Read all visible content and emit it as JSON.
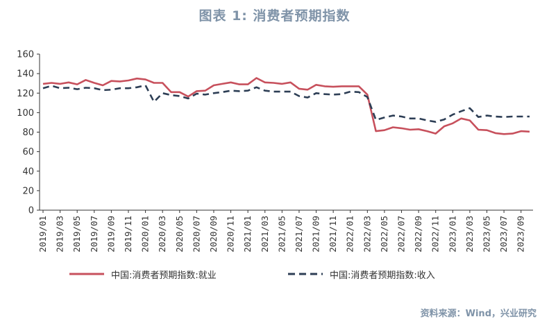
{
  "title": "图表 1:  消费者预期指数",
  "source": "资料来源：Wind，兴业研究",
  "colors": {
    "employment": "#c7505c",
    "income": "#2d3e55",
    "axis": "#333333"
  },
  "chart_data": {
    "type": "line",
    "title": "图表 1:  消费者预期指数",
    "ylim": [
      0,
      160
    ],
    "yticks": [
      0,
      20,
      40,
      60,
      80,
      100,
      120,
      140,
      160
    ],
    "grid": false,
    "legend_position": "bottom",
    "x": [
      "2019/01",
      "2019/02",
      "2019/03",
      "2019/04",
      "2019/05",
      "2019/06",
      "2019/07",
      "2019/08",
      "2019/09",
      "2019/10",
      "2019/11",
      "2019/12",
      "2020/01",
      "2020/02",
      "2020/03",
      "2020/04",
      "2020/05",
      "2020/06",
      "2020/07",
      "2020/08",
      "2020/09",
      "2020/10",
      "2020/11",
      "2020/12",
      "2021/01",
      "2021/02",
      "2021/03",
      "2021/04",
      "2021/05",
      "2021/06",
      "2021/07",
      "2021/08",
      "2021/09",
      "2021/10",
      "2021/11",
      "2021/12",
      "2022/01",
      "2022/02",
      "2022/03",
      "2022/04",
      "2022/05",
      "2022/06",
      "2022/07",
      "2022/08",
      "2022/09",
      "2022/10",
      "2022/11",
      "2022/12",
      "2023/01",
      "2023/02",
      "2023/03",
      "2023/04",
      "2023/05",
      "2023/06",
      "2023/07",
      "2023/08",
      "2023/09",
      "2023/10"
    ],
    "xticklabels": [
      "2019/01",
      "2019/03",
      "2019/05",
      "2019/07",
      "2019/09",
      "2019/11",
      "2020/01",
      "2020/03",
      "2020/05",
      "2020/07",
      "2020/09",
      "2020/11",
      "2021/01",
      "2021/03",
      "2021/05",
      "2021/07",
      "2021/09",
      "2021/11",
      "2022/01",
      "2022/03",
      "2022/05",
      "2022/07",
      "2022/09",
      "2022/11",
      "2023/01",
      "2023/03",
      "2023/05",
      "2023/07",
      "2023/09"
    ],
    "series": [
      {
        "name": "中国:消费者预期指数:就业",
        "style": "solid",
        "values": [
          129.5,
          130.5,
          129.5,
          131,
          129,
          133.5,
          130.5,
          128,
          132.5,
          132,
          133,
          135,
          134,
          130.5,
          130.5,
          121,
          121,
          116.5,
          122,
          122.5,
          128,
          129.5,
          131,
          129,
          129,
          135.5,
          131,
          130.5,
          129.5,
          131,
          124.5,
          123.5,
          128.5,
          127,
          126.5,
          127,
          127,
          127,
          118.5,
          81,
          82,
          85,
          84,
          82.5,
          83,
          81,
          78.5,
          86,
          89,
          94,
          92,
          82.5,
          82,
          79,
          78,
          78.5,
          81,
          80.5
        ]
      },
      {
        "name": "中国:消费者预期指数:收入",
        "style": "dashed",
        "values": [
          125,
          127.5,
          125,
          125.5,
          124,
          125.5,
          125,
          123,
          123.5,
          125,
          125,
          126,
          128,
          111,
          120,
          118,
          117,
          114.5,
          119.5,
          118.5,
          120,
          121,
          122.5,
          122,
          122.5,
          126,
          122.5,
          121.5,
          121.5,
          121.5,
          117,
          115.5,
          120,
          119,
          118.5,
          119,
          121.5,
          121,
          116,
          92.5,
          95,
          97,
          96,
          94,
          94,
          92,
          90.5,
          93,
          98,
          101.5,
          104.5,
          95.5,
          97,
          96,
          95.5,
          96,
          96,
          96
        ]
      }
    ]
  }
}
